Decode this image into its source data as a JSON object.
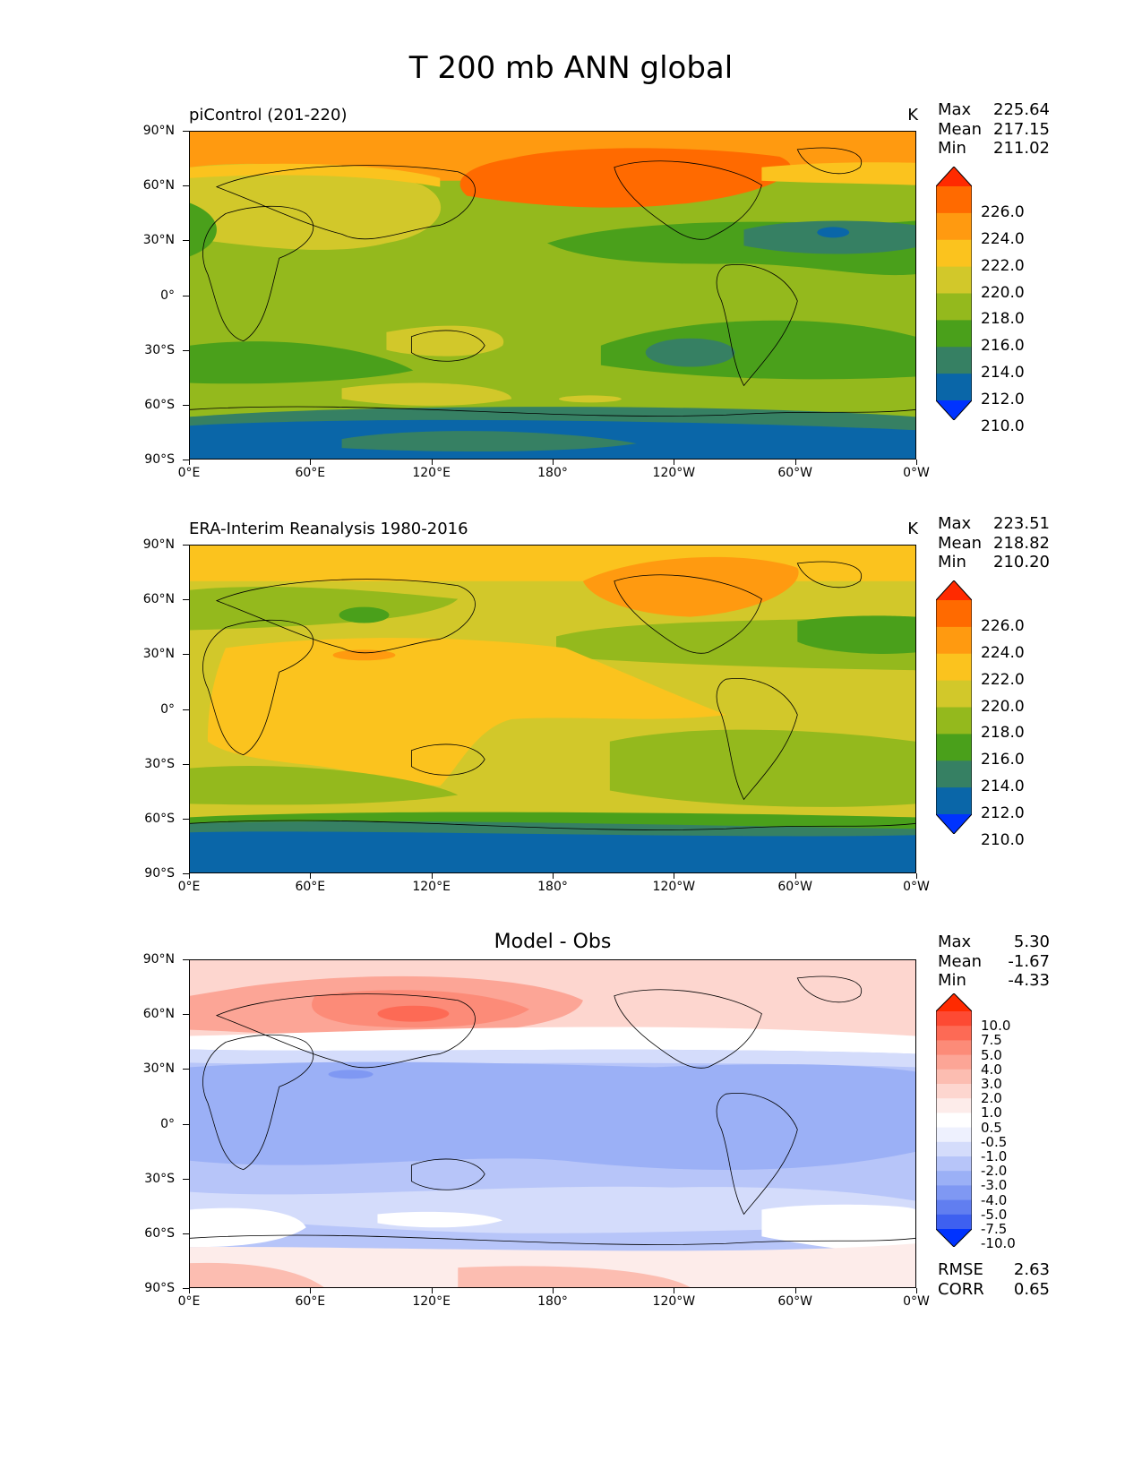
{
  "figure": {
    "title": "T 200 mb ANN global"
  },
  "axes": {
    "y_ticks": [
      "90°N",
      "60°N",
      "30°N",
      "0°",
      "30°S",
      "60°S",
      "90°S"
    ],
    "x_ticks": [
      "0°E",
      "60°E",
      "120°E",
      "180°",
      "120°W",
      "60°W",
      "0°W"
    ]
  },
  "panels": [
    {
      "title": "piControl (201-220)",
      "units": "K",
      "stats": [
        {
          "label": "Max",
          "value": "225.64"
        },
        {
          "label": "Mean",
          "value": "217.15"
        },
        {
          "label": "Min",
          "value": "211.02"
        }
      ],
      "colorbar": {
        "labels": [
          "226.0",
          "224.0",
          "222.0",
          "220.0",
          "218.0",
          "216.0",
          "214.0",
          "212.0",
          "210.0"
        ],
        "colors": [
          "#ff2a00",
          "#ff6a00",
          "#ff9a10",
          "#fbc31e",
          "#d2c82a",
          "#94b91d",
          "#4aa01b",
          "#368063",
          "#0a66a8",
          "#0033ff"
        ]
      }
    },
    {
      "title": "ERA-Interim Reanalysis 1980-2016",
      "units": "K",
      "stats": [
        {
          "label": "Max",
          "value": "223.51"
        },
        {
          "label": "Mean",
          "value": "218.82"
        },
        {
          "label": "Min",
          "value": "210.20"
        }
      ],
      "colorbar": {
        "labels": [
          "226.0",
          "224.0",
          "222.0",
          "220.0",
          "218.0",
          "216.0",
          "214.0",
          "212.0",
          "210.0"
        ],
        "colors": [
          "#ff2a00",
          "#ff6a00",
          "#ff9a10",
          "#fbc31e",
          "#d2c82a",
          "#94b91d",
          "#4aa01b",
          "#368063",
          "#0a66a8",
          "#0033ff"
        ]
      }
    },
    {
      "title": "Model - Obs",
      "units": "",
      "stats": [
        {
          "label": "Max",
          "value": "5.30"
        },
        {
          "label": "Mean",
          "value": "-1.67"
        },
        {
          "label": "Min",
          "value": "-4.33"
        }
      ],
      "colorbar": {
        "labels": [
          "10.0",
          "7.5",
          "5.0",
          "4.0",
          "3.0",
          "2.0",
          "1.0",
          "0.5",
          "-0.5",
          "-1.0",
          "-2.0",
          "-3.0",
          "-4.0",
          "-5.0",
          "-7.5",
          "-10.0"
        ],
        "colors": [
          "#ff2a00",
          "#fd4a33",
          "#fd6a55",
          "#fc8b78",
          "#fca596",
          "#fcbdb1",
          "#fdd6cf",
          "#fdecea",
          "#ffffff",
          "#eef1fe",
          "#d4dcfb",
          "#b7c5f9",
          "#9bb0f6",
          "#7f98f3",
          "#617ef0",
          "#3e60f0",
          "#0033ff"
        ]
      },
      "extra_stats": [
        {
          "label": "RMSE",
          "value": "2.63"
        },
        {
          "label": "CORR",
          "value": "0.65"
        }
      ]
    }
  ]
}
